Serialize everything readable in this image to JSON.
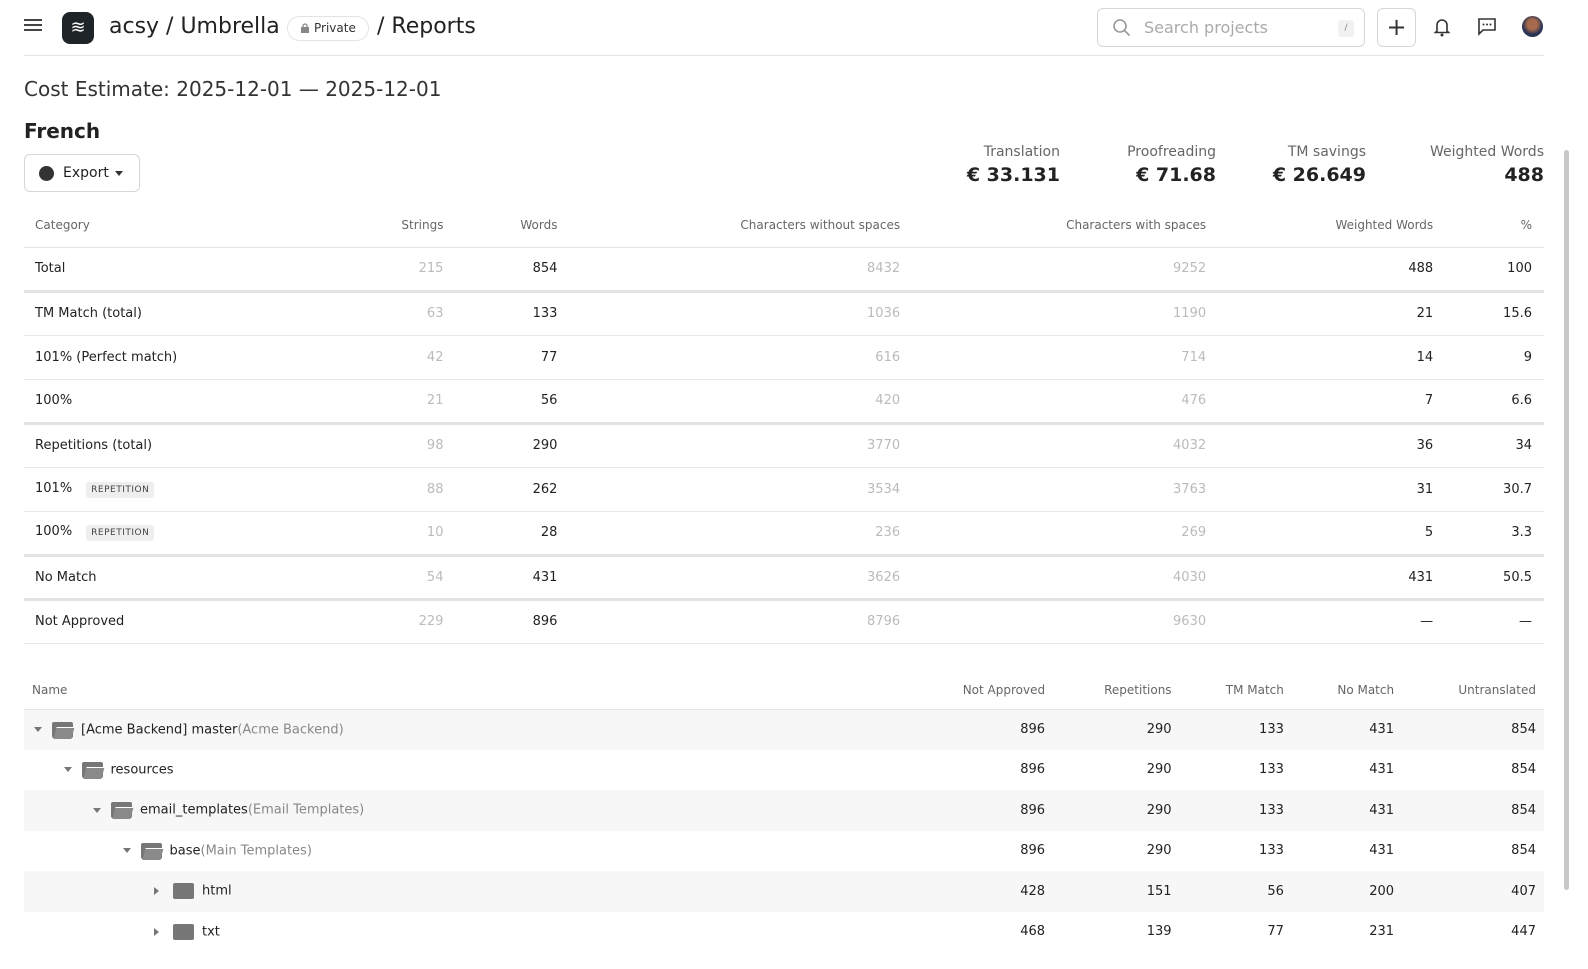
{
  "header": {
    "org": "acsy / Umbrella",
    "visibility": "Private",
    "page": "/ Reports",
    "search_placeholder": "Search projects",
    "search_shortcut": "/"
  },
  "report": {
    "title": "Cost Estimate: 2025-12-01 — 2025-12-01",
    "language": "French",
    "export_label": "Export"
  },
  "stats": [
    {
      "label": "Translation",
      "value": "€ 33.131"
    },
    {
      "label": "Proofreading",
      "value": "€ 71.68"
    },
    {
      "label": "TM savings",
      "value": "€ 26.649"
    },
    {
      "label": "Weighted Words",
      "value": "488"
    }
  ],
  "summary": {
    "columns": [
      "Category",
      "Strings",
      "Words",
      "Characters without spaces",
      "Characters with spaces",
      "Weighted Words",
      "%"
    ],
    "rows": [
      {
        "category": "Total",
        "tag": "",
        "cells": [
          "215",
          "854",
          "8432",
          "9252",
          "488",
          "100"
        ],
        "sep": true
      },
      {
        "category": "TM Match (total)",
        "tag": "",
        "cells": [
          "63",
          "133",
          "1036",
          "1190",
          "21",
          "15.6"
        ]
      },
      {
        "category": "101% (Perfect match)",
        "tag": "",
        "cells": [
          "42",
          "77",
          "616",
          "714",
          "14",
          "9"
        ]
      },
      {
        "category": "100%",
        "tag": "",
        "cells": [
          "21",
          "56",
          "420",
          "476",
          "7",
          "6.6"
        ],
        "sep": true
      },
      {
        "category": "Repetitions (total)",
        "tag": "",
        "cells": [
          "98",
          "290",
          "3770",
          "4032",
          "36",
          "34"
        ]
      },
      {
        "category": "101%",
        "tag": "REPETITION",
        "cells": [
          "88",
          "262",
          "3534",
          "3763",
          "31",
          "30.7"
        ]
      },
      {
        "category": "100%",
        "tag": "REPETITION",
        "cells": [
          "10",
          "28",
          "236",
          "269",
          "5",
          "3.3"
        ],
        "sep": true
      },
      {
        "category": "No Match",
        "tag": "",
        "cells": [
          "54",
          "431",
          "3626",
          "4030",
          "431",
          "50.5"
        ],
        "sep": true
      },
      {
        "category": "Not Approved",
        "tag": "",
        "cells": [
          "229",
          "896",
          "8796",
          "9630",
          "—",
          "—"
        ]
      }
    ]
  },
  "tree": {
    "columns": [
      "Name",
      "Not Approved",
      "Repetitions",
      "TM Match",
      "No Match",
      "Untranslated"
    ],
    "rows": [
      {
        "name": "[Acme Backend] master",
        "sub": "(Acme Backend)",
        "level": 0,
        "expanded": true,
        "icon": "branch-folder-icon",
        "cells": [
          "896",
          "290",
          "133",
          "431",
          "854"
        ]
      },
      {
        "name": "resources",
        "sub": "",
        "level": 1,
        "expanded": true,
        "icon": "folder-open-icon",
        "cells": [
          "896",
          "290",
          "133",
          "431",
          "854"
        ]
      },
      {
        "name": "email_templates",
        "sub": "(Email Templates)",
        "level": 2,
        "expanded": true,
        "icon": "folder-open-icon",
        "cells": [
          "896",
          "290",
          "133",
          "431",
          "854"
        ]
      },
      {
        "name": "base",
        "sub": "(Main Templates)",
        "level": 3,
        "expanded": true,
        "icon": "folder-open-icon",
        "cells": [
          "896",
          "290",
          "133",
          "431",
          "854"
        ]
      },
      {
        "name": "html",
        "sub": "",
        "level": 4,
        "expanded": false,
        "icon": "folder-icon",
        "cells": [
          "428",
          "151",
          "56",
          "200",
          "407"
        ]
      },
      {
        "name": "txt",
        "sub": "",
        "level": 4,
        "expanded": false,
        "icon": "folder-icon",
        "cells": [
          "468",
          "139",
          "77",
          "231",
          "447"
        ]
      }
    ]
  }
}
